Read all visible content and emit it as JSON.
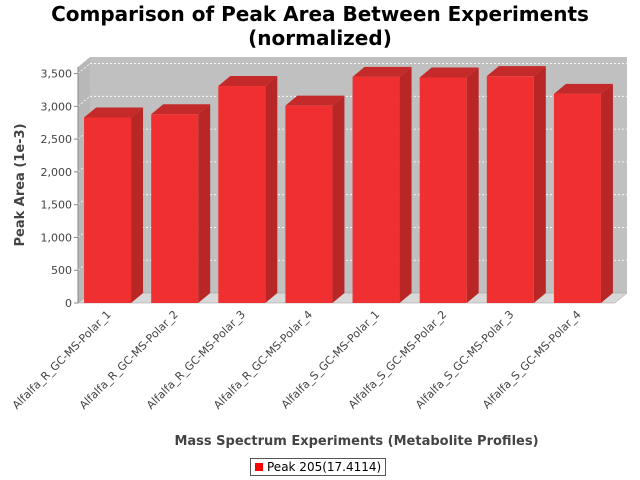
{
  "chart_data": {
    "type": "bar",
    "title_lines": [
      "Comparison of Peak Area Between Experiments",
      "(normalized)"
    ],
    "xlabel": "Mass Spectrum Experiments (Metabolite Profiles)",
    "ylabel": "Peak Area (1e-3)",
    "categories": [
      "Alfalfa_R_GC-MS-Polar_1",
      "Alfalfa_R_GC-MS-Polar_2",
      "Alfalfa_R_GC-MS-Polar_3",
      "Alfalfa_R_GC-MS-Polar_4",
      "Alfalfa_S_GC-MS-Polar_1",
      "Alfalfa_S_GC-MS-Polar_2",
      "Alfalfa_S_GC-MS-Polar_3",
      "Alfalfa_S_GC-MS-Polar_4"
    ],
    "series": [
      {
        "name": "Peak 205(17.4114)",
        "values": [
          2830,
          2880,
          3310,
          3010,
          3450,
          3440,
          3460,
          3190
        ],
        "color": "#ff0000"
      }
    ],
    "ylim": [
      0,
      3600
    ],
    "yticks": [
      0,
      500,
      1000,
      1500,
      2000,
      2500,
      3000,
      3500
    ],
    "ytick_labels": [
      "0",
      "500",
      "1,000",
      "1,500",
      "2,000",
      "2,500",
      "3,000",
      "3,500"
    ],
    "grid": true,
    "legend_position": "bottom",
    "colors": {
      "plot_background": "#c0c0c0",
      "floor": "#d8d8d8",
      "bar_front": "#f03030",
      "bar_side": "#b82626",
      "bar_top": "#c42a2a"
    }
  }
}
